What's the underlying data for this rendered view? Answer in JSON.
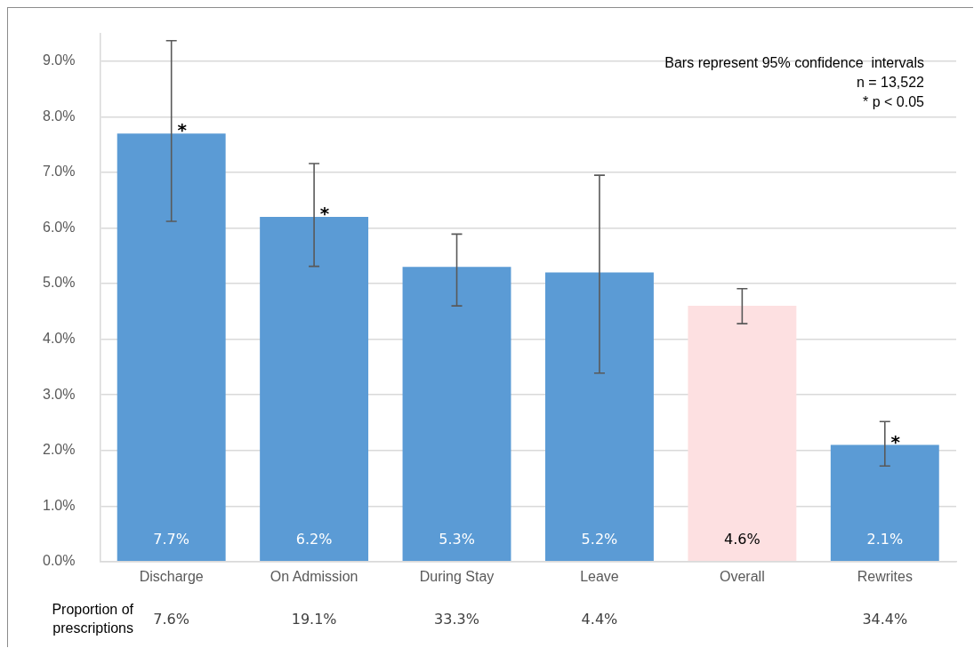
{
  "chart_data": {
    "type": "bar",
    "categories": [
      "Discharge",
      "On Admission",
      "During Stay",
      "Leave",
      "Overall",
      "Rewrites"
    ],
    "values": [
      7.7,
      6.2,
      5.3,
      5.2,
      4.6,
      2.1
    ],
    "colors": [
      "#5b9bd5",
      "#5b9bd5",
      "#5b9bd5",
      "#5b9bd5",
      "#fde0e1",
      "#5b9bd5"
    ],
    "value_labels": [
      "7.7%",
      "6.2%",
      "5.3%",
      "5.2%",
      "4.6%",
      "2.1%"
    ],
    "errors": [
      [
        6.12,
        9.37
      ],
      [
        5.31,
        7.16
      ],
      [
        4.6,
        5.89
      ],
      [
        3.39,
        6.95
      ],
      [
        4.28,
        4.91
      ],
      [
        1.72,
        2.52
      ]
    ],
    "ylim": [
      0,
      9.5
    ],
    "yticks": [
      {
        "value": 0,
        "label": "0.0%"
      },
      {
        "value": 1,
        "label": "1.0%"
      },
      {
        "value": 2,
        "label": "2.0%"
      },
      {
        "value": 3,
        "label": "3.0%"
      },
      {
        "value": 4,
        "label": "4.0%"
      },
      {
        "value": 5,
        "label": "5.0%"
      },
      {
        "value": 6,
        "label": "6.0%"
      },
      {
        "value": 7,
        "label": "7.0%"
      },
      {
        "value": 8,
        "label": "8.0%"
      },
      {
        "value": 9,
        "label": "9.0%"
      }
    ],
    "grid": "y",
    "legend": false,
    "annotations": [
      "Bars represent 95% confidence  intervals",
      "n = 13,522",
      "* p < 0.05",
      {
        "text": "*",
        "x": "Discharge"
      },
      {
        "text": "*",
        "x": "On Admission"
      },
      {
        "text": "*",
        "x": "Rewrites"
      },
      "Proportion of prescriptions",
      "7.6%",
      "19.1%",
      "33.3%",
      "4.4%",
      "34.4%"
    ]
  }
}
